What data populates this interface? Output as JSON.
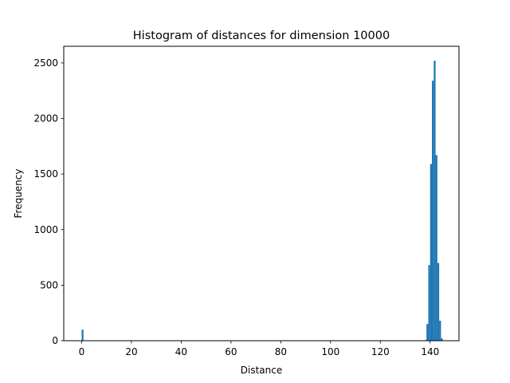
{
  "chart_data": {
    "type": "bar",
    "title": "Histogram of distances for dimension 10000",
    "xlabel": "Distance",
    "ylabel": "Frequency",
    "xlim": [
      -7.2,
      151.6
    ],
    "ylim": [
      0,
      2650
    ],
    "xticks": [
      0,
      20,
      40,
      60,
      80,
      100,
      120,
      140
    ],
    "yticks": [
      0,
      500,
      1000,
      1500,
      2000,
      2500
    ],
    "bin_width": 0.73,
    "bins": [
      {
        "x0": 0,
        "x1": 0.73,
        "value": 100
      },
      {
        "x0": 137.8,
        "x1": 138.53,
        "value": 5
      },
      {
        "x0": 138.53,
        "x1": 139.26,
        "value": 150
      },
      {
        "x0": 139.26,
        "x1": 139.99,
        "value": 680
      },
      {
        "x0": 139.99,
        "x1": 140.72,
        "value": 1590
      },
      {
        "x0": 140.72,
        "x1": 141.45,
        "value": 2340
      },
      {
        "x0": 141.45,
        "x1": 142.18,
        "value": 2520
      },
      {
        "x0": 142.18,
        "x1": 142.91,
        "value": 1670
      },
      {
        "x0": 142.91,
        "x1": 143.64,
        "value": 700
      },
      {
        "x0": 143.64,
        "x1": 144.37,
        "value": 180
      },
      {
        "x0": 144.37,
        "x1": 145.1,
        "value": 20
      }
    ],
    "bar_color": "#1f77b4",
    "grid": false,
    "legend": "none"
  }
}
